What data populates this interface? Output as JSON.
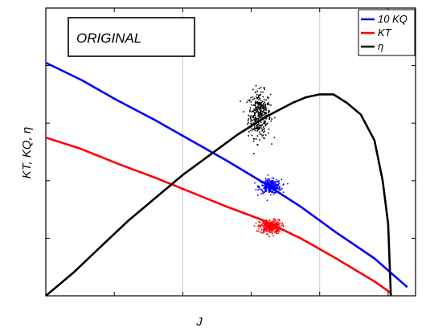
{
  "chart_data": {
    "type": "line",
    "xlabel": "J",
    "ylabel": "KT, KQ, η",
    "xlim": [
      0,
      1.35
    ],
    "ylim": [
      0,
      1.0
    ],
    "grid": {
      "x": true,
      "y": false
    },
    "x_gridlines": [
      0.5,
      1.0
    ],
    "legend_position": "top-right",
    "annotation": "ORIGINAL",
    "series": [
      {
        "name": "10 KQ",
        "color": "#0000ff",
        "x": [
          0,
          0.13,
          0.26,
          0.4,
          0.53,
          0.66,
          0.8,
          0.93,
          1.06,
          1.2,
          1.32
        ],
        "y": [
          0.81,
          0.75,
          0.68,
          0.61,
          0.54,
          0.47,
          0.39,
          0.31,
          0.22,
          0.13,
          0.03
        ]
      },
      {
        "name": "KT",
        "color": "#ff0000",
        "x": [
          0,
          0.13,
          0.26,
          0.4,
          0.53,
          0.66,
          0.8,
          0.93,
          1.06,
          1.2,
          1.26
        ],
        "y": [
          0.55,
          0.51,
          0.46,
          0.41,
          0.36,
          0.31,
          0.26,
          0.2,
          0.13,
          0.05,
          0.01
        ]
      },
      {
        "name": "η",
        "color": "#000000",
        "x": [
          0,
          0.1,
          0.2,
          0.3,
          0.4,
          0.5,
          0.6,
          0.7,
          0.8,
          0.9,
          0.95,
          1.0,
          1.05,
          1.1,
          1.15,
          1.2,
          1.23,
          1.25,
          1.26
        ],
        "y": [
          0.0,
          0.08,
          0.17,
          0.26,
          0.34,
          0.42,
          0.49,
          0.56,
          0.62,
          0.67,
          0.69,
          0.7,
          0.7,
          0.67,
          0.63,
          0.54,
          0.4,
          0.25,
          0.0
        ]
      }
    ],
    "scatter_clusters": [
      {
        "series": "η",
        "color": "#000000",
        "center": [
          0.78,
          0.63
        ],
        "spread": [
          0.02,
          0.04
        ],
        "count": 350
      },
      {
        "series": "10 KQ",
        "color": "#0000ff",
        "center": [
          0.82,
          0.38
        ],
        "spread": [
          0.02,
          0.012
        ],
        "count": 300
      },
      {
        "series": "KT",
        "color": "#ff0000",
        "center": [
          0.82,
          0.24
        ],
        "spread": [
          0.02,
          0.012
        ],
        "count": 300
      }
    ]
  }
}
